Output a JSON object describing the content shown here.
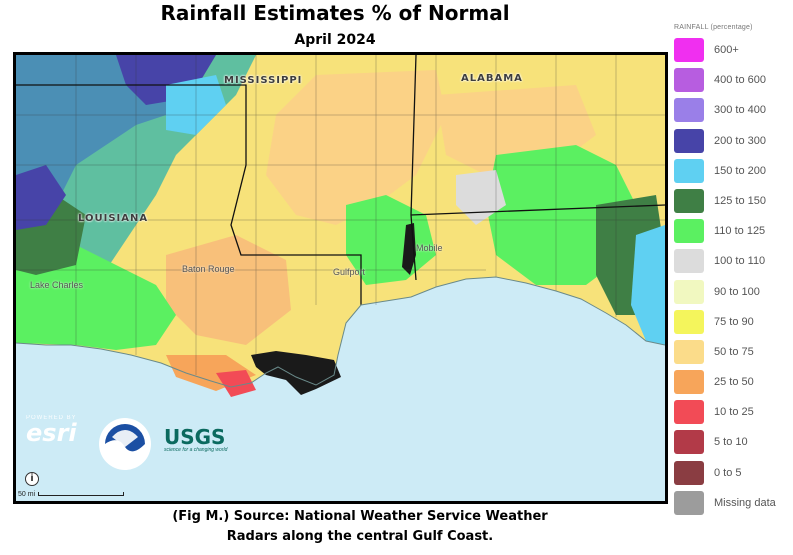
{
  "title": "Rainfall Estimates % of Normal",
  "subtitle": "April 2024",
  "caption_line1": "(Fig M.) Source: National Weather Service Weather",
  "caption_line2": "Radars along the central Gulf Coast.",
  "map": {
    "state_labels": [
      "MISSISSIPPI",
      "ALABAMA",
      "LOUISIANA"
    ],
    "city_labels": [
      "Baton Rouge",
      "Gulfport",
      "Mobile",
      "Lake Charles"
    ],
    "attribution_logos": [
      "esri",
      "NOAA",
      "USGS"
    ],
    "esri_powered_by": "POWERED BY",
    "esri_name": "esri",
    "usgs_name": "USGS",
    "usgs_tagline": "science for a changing world",
    "info_icon": "info-icon",
    "info_glyph": "i",
    "scale_label": "50 mi"
  },
  "legend": {
    "title": "RAINFALL (percentage)",
    "items": [
      {
        "label": "600+",
        "color": "#f02ff0"
      },
      {
        "label": "400 to 600",
        "color": "#b75de0"
      },
      {
        "label": "300 to 400",
        "color": "#9a7fe8"
      },
      {
        "label": "200 to 300",
        "color": "#4744a8"
      },
      {
        "label": "150 to 200",
        "color": "#5fd0f2"
      },
      {
        "label": "125 to 150",
        "color": "#3f7f45"
      },
      {
        "label": "110 to 125",
        "color": "#5bf061"
      },
      {
        "label": "100 to 110",
        "color": "#dcdcdc"
      },
      {
        "label": "90 to 100",
        "color": "#f1f8c0"
      },
      {
        "label": "75 to 90",
        "color": "#f4f55c"
      },
      {
        "label": "50 to 75",
        "color": "#fbdc8a"
      },
      {
        "label": "25 to 50",
        "color": "#f7a55a"
      },
      {
        "label": "10 to 25",
        "color": "#f24b56"
      },
      {
        "label": "5 to 10",
        "color": "#b23a48"
      },
      {
        "label": "0 to 5",
        "color": "#8a3d42"
      },
      {
        "label": "Missing data",
        "color": "#9c9c9c"
      }
    ]
  }
}
